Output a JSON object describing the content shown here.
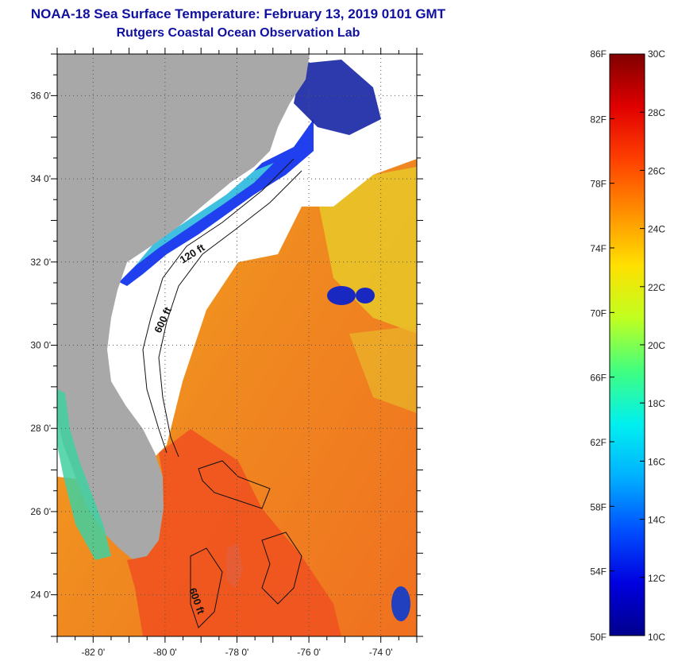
{
  "title": {
    "line1": "NOAA-18 Sea Surface Temperature:  February 13, 2019 0101 GMT",
    "line2": "Rutgers Coastal Ocean Observation Lab"
  },
  "map": {
    "lat_range": [
      23,
      37
    ],
    "lon_range": [
      -83,
      -73
    ],
    "lat_ticks": [
      {
        "value": 36,
        "label": "36 0'"
      },
      {
        "value": 34,
        "label": "34 0'"
      },
      {
        "value": 32,
        "label": "32 0'"
      },
      {
        "value": 30,
        "label": "30 0'"
      },
      {
        "value": 28,
        "label": "28 0'"
      },
      {
        "value": 26,
        "label": "26 0'"
      },
      {
        "value": 24,
        "label": "24 0'"
      }
    ],
    "lon_ticks": [
      {
        "value": -82,
        "label": "-82 0'"
      },
      {
        "value": -80,
        "label": "-80 0'"
      },
      {
        "value": -78,
        "label": "-78 0'"
      },
      {
        "value": -76,
        "label": "-76 0'"
      },
      {
        "value": -74,
        "label": "-74 0'"
      }
    ],
    "contour_labels": [
      "120 ft",
      "600 ft",
      "600 ft"
    ],
    "colors": {
      "land": "#a8a8a8",
      "warm_ocean": "#f08a20",
      "hot_ocean": "#f05020",
      "yellow_ocean": "#f0d020",
      "cold_ocean": "#0818a0",
      "cyan_ocean": "#40c0e0",
      "cloud": "#ffffff"
    }
  },
  "colorbar": {
    "fahrenheit_labels": [
      "86F",
      "82F",
      "78F",
      "74F",
      "70F",
      "66F",
      "62F",
      "58F",
      "54F",
      "50F"
    ],
    "celsius_labels": [
      "30C",
      "28C",
      "26C",
      "24C",
      "22C",
      "20C",
      "18C",
      "16C",
      "14C",
      "12C",
      "10C"
    ],
    "range_c": [
      10,
      30
    ],
    "gradient": [
      "#00008c",
      "#0000e0",
      "#0050ff",
      "#00b0ff",
      "#00f0f0",
      "#40ff80",
      "#c0ff20",
      "#ffe000",
      "#ff9000",
      "#ff4000",
      "#e00000",
      "#800000"
    ]
  }
}
